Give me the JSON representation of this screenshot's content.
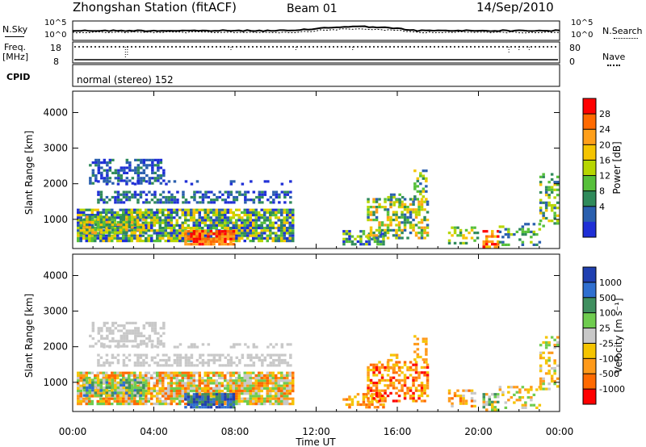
{
  "header": {
    "station": "Zhongshan Station (fitACF)",
    "beam": "Beam 01",
    "date": "14/Sep/2010"
  },
  "top_panels": {
    "nsky_label": "N.Sky",
    "nsky_ticks": [
      "10^5",
      "10^0"
    ],
    "nsearch_label": "N.Search",
    "freq_label": "Freq.",
    "freq_unit": "[MHz]",
    "freq_ticks": [
      "18",
      "8"
    ],
    "nave_label": "Nave",
    "nave_ticks": [
      "80",
      "0"
    ],
    "cpid_label": "CPID",
    "cpid_value": "normal (stereo) 152"
  },
  "power_colorbar": {
    "label": "Power [dB]",
    "ticks": [
      "28",
      "24",
      "20",
      "16",
      "12",
      "8",
      "4"
    ],
    "colors": [
      "#ff0000",
      "#ff6a00",
      "#ff9f1a",
      "#f5c400",
      "#b7d600",
      "#56c03a",
      "#2f8a5a",
      "#2a5fae",
      "#1f2fd6"
    ]
  },
  "velocity_colorbar": {
    "label": "Velocity [m s⁻¹]",
    "ticks": [
      "1000",
      "500",
      "100",
      "25",
      "-25",
      "-100",
      "-500",
      "-1000"
    ],
    "colors": [
      "#1f3fb0",
      "#2f6fd0",
      "#3f8f5f",
      "#6fcc4f",
      "#c8c8c8",
      "#f5c400",
      "#ff9a1a",
      "#ff6a00",
      "#ff0000"
    ]
  },
  "chart_data": [
    {
      "type": "heatmap",
      "title": "Power",
      "xlabel": "",
      "ylabel": "Slant Range [km]",
      "x_ticks": [
        "00:00",
        "04:00",
        "08:00",
        "12:00",
        "16:00",
        "20:00",
        "00:00"
      ],
      "x_range_hours": [
        0,
        24
      ],
      "y_ticks": [
        "1000",
        "2000",
        "3000",
        "4000"
      ],
      "y_range_km": [
        180,
        4600
      ]
    },
    {
      "type": "heatmap",
      "title": "Velocity",
      "xlabel": "Time UT",
      "ylabel": "Slant Range [km]",
      "x_ticks": [
        "00:00",
        "04:00",
        "08:00",
        "12:00",
        "16:00",
        "20:00",
        "00:00"
      ],
      "x_range_hours": [
        0,
        24
      ],
      "y_ticks": [
        "1000",
        "2000",
        "3000",
        "4000"
      ],
      "y_range_km": [
        180,
        4600
      ]
    }
  ]
}
